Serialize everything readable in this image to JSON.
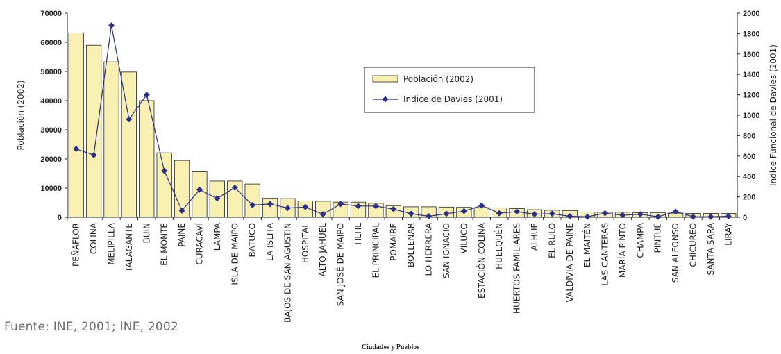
{
  "source_note": "Fuente: INE, 2001; INE, 2002",
  "chart_data": {
    "type": "bar",
    "categories": [
      "PEÑAFLOR",
      "COLINA",
      "MELIPILLA",
      "TALAGANTE",
      "BUIN",
      "EL MONTE",
      "PAINE",
      "CURACAVÍ",
      "LAMPA",
      "ISLA DE MAIPO",
      "BATUCO",
      "LA ISLITA",
      "BAJOS DE SAN AGUSTÍN",
      "HOSPITAL",
      "ALTO JAHUEL",
      "SAN JOSÉ DE MAIPO",
      "TILTIL",
      "EL PRINCIPAL",
      "POMAIRE",
      "BOLLENAR",
      "LO HERRERA",
      "SAN IGNACIO",
      "VILUCO",
      "ESTACIÓN COLINA",
      "HUELQUÉN",
      "HUERTOS FAMILIARES",
      "ALHUÉ",
      "EL RULO",
      "VALDIVIA DE PAINE",
      "EL MAITÉN",
      "LAS CANTERAS",
      "MARÍA PINTO",
      "CHAMPA",
      "PINTUÉ",
      "SAN ALFONSO",
      "CHICUREO",
      "SANTA SARA",
      "LIRAY"
    ],
    "series": [
      {
        "name": "Población (2002)",
        "type": "bar",
        "axis": "left",
        "color": "#f7f0b0",
        "values": [
          63200,
          59000,
          53300,
          49800,
          40000,
          22100,
          19500,
          15600,
          12400,
          12400,
          11400,
          6500,
          6400,
          5600,
          5500,
          5200,
          5200,
          4800,
          4000,
          3600,
          3600,
          3500,
          3400,
          3300,
          3200,
          3000,
          2600,
          2400,
          2300,
          1800,
          1700,
          1700,
          1600,
          1600,
          1400,
          1300,
          1300,
          1300
        ]
      },
      {
        "name": "Indice de Davies (2001)",
        "type": "line",
        "axis": "right",
        "color": "#2b2f8a",
        "values": [
          670,
          610,
          1880,
          960,
          1200,
          455,
          65,
          270,
          185,
          290,
          120,
          130,
          90,
          100,
          30,
          130,
          110,
          110,
          80,
          35,
          10,
          35,
          60,
          115,
          40,
          55,
          30,
          35,
          10,
          5,
          40,
          20,
          30,
          5,
          55,
          5,
          5,
          10
        ]
      }
    ],
    "xlabel": "Ciudades y Pueblos",
    "ylabel_left": "Población (2002)",
    "ylabel_right": "Indice Funcional de Davies (2001)",
    "ylim_left": [
      0,
      70000
    ],
    "ylim_right": [
      0,
      2000
    ],
    "yticks_left": [
      "0",
      "10000",
      "20000",
      "30000",
      "40000",
      "50000",
      "60000",
      "70000"
    ],
    "yticks_right": [
      "0",
      "200",
      "400",
      "600",
      "800",
      "1000",
      "1200",
      "1400",
      "1600",
      "1800",
      "2000"
    ],
    "legend_position": "top-center",
    "grid": false
  }
}
